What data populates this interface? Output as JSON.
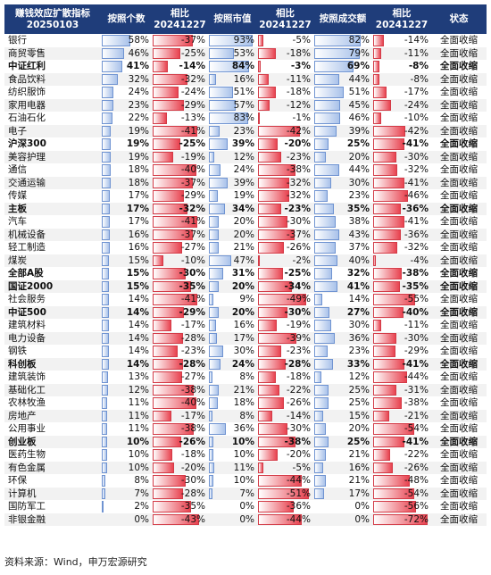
{
  "headers": {
    "col0": [
      "赚钱效应扩散指标",
      "20250103"
    ],
    "col1": "按照个数",
    "col2": [
      "相比",
      "20241227"
    ],
    "col3": "按照市值",
    "col4": [
      "相比",
      "20241227"
    ],
    "col5": "按照成交额",
    "col6": [
      "相比",
      "20241227"
    ],
    "col7": "状态"
  },
  "source": "资料来源：Wind，申万宏源研究",
  "colors": {
    "header_bg": "#1f3d7a",
    "positive_bar": "#a9c2ea",
    "negative_bar": "#e84350"
  },
  "chart_data": {
    "type": "table",
    "columns": [
      "赚钱效应扩散指标 20250103",
      "按照个数",
      "相比 20241227",
      "按照市值",
      "相比 20241227",
      "按照成交额",
      "相比 20241227",
      "状态"
    ],
    "rows": [
      {
        "name": "银行",
        "count": "58%",
        "count_chg": "-37%",
        "mcap": "93%",
        "mcap_chg": "-5%",
        "turnover": "82%",
        "turnover_chg": "-14%",
        "status": "全面收缩",
        "bold": false
      },
      {
        "name": "商贸零售",
        "count": "46%",
        "count_chg": "-25%",
        "mcap": "53%",
        "mcap_chg": "-18%",
        "turnover": "79%",
        "turnover_chg": "-11%",
        "status": "全面收缩",
        "bold": false
      },
      {
        "name": "中证红利",
        "count": "41%",
        "count_chg": "-14%",
        "mcap": "84%",
        "mcap_chg": "-3%",
        "turnover": "69%",
        "turnover_chg": "-8%",
        "status": "全面收缩",
        "bold": true
      },
      {
        "name": "食品饮料",
        "count": "32%",
        "count_chg": "-32%",
        "mcap": "16%",
        "mcap_chg": "-11%",
        "turnover": "44%",
        "turnover_chg": "-8%",
        "status": "全面收缩",
        "bold": false
      },
      {
        "name": "纺织服饰",
        "count": "24%",
        "count_chg": "-24%",
        "mcap": "51%",
        "mcap_chg": "-18%",
        "turnover": "51%",
        "turnover_chg": "-17%",
        "status": "全面收缩",
        "bold": false
      },
      {
        "name": "家用电器",
        "count": "23%",
        "count_chg": "-29%",
        "mcap": "57%",
        "mcap_chg": "-12%",
        "turnover": "45%",
        "turnover_chg": "-24%",
        "status": "全面收缩",
        "bold": false
      },
      {
        "name": "石油石化",
        "count": "22%",
        "count_chg": "-13%",
        "mcap": "83%",
        "mcap_chg": "-1%",
        "turnover": "46%",
        "turnover_chg": "-10%",
        "status": "全面收缩",
        "bold": false
      },
      {
        "name": "电子",
        "count": "19%",
        "count_chg": "-41%",
        "mcap": "23%",
        "mcap_chg": "-42%",
        "turnover": "39%",
        "turnover_chg": "-42%",
        "status": "全面收缩",
        "bold": false
      },
      {
        "name": "沪深300",
        "count": "19%",
        "count_chg": "-25%",
        "mcap": "39%",
        "mcap_chg": "-20%",
        "turnover": "25%",
        "turnover_chg": "-41%",
        "status": "全面收缩",
        "bold": true
      },
      {
        "name": "美容护理",
        "count": "19%",
        "count_chg": "-19%",
        "mcap": "12%",
        "mcap_chg": "-23%",
        "turnover": "20%",
        "turnover_chg": "-30%",
        "status": "全面收缩",
        "bold": false
      },
      {
        "name": "通信",
        "count": "18%",
        "count_chg": "-40%",
        "mcap": "24%",
        "mcap_chg": "-38%",
        "turnover": "44%",
        "turnover_chg": "-32%",
        "status": "全面收缩",
        "bold": false
      },
      {
        "name": "交通运输",
        "count": "18%",
        "count_chg": "-37%",
        "mcap": "39%",
        "mcap_chg": "-32%",
        "turnover": "30%",
        "turnover_chg": "-41%",
        "status": "全面收缩",
        "bold": false
      },
      {
        "name": "传媒",
        "count": "17%",
        "count_chg": "-29%",
        "mcap": "19%",
        "mcap_chg": "-32%",
        "turnover": "23%",
        "turnover_chg": "-46%",
        "status": "全面收缩",
        "bold": false
      },
      {
        "name": "主板",
        "count": "17%",
        "count_chg": "-32%",
        "mcap": "34%",
        "mcap_chg": "-23%",
        "turnover": "35%",
        "turnover_chg": "-36%",
        "status": "全面收缩",
        "bold": true
      },
      {
        "name": "汽车",
        "count": "17%",
        "count_chg": "-41%",
        "mcap": "20%",
        "mcap_chg": "-30%",
        "turnover": "38%",
        "turnover_chg": "-41%",
        "status": "全面收缩",
        "bold": false
      },
      {
        "name": "机械设备",
        "count": "16%",
        "count_chg": "-37%",
        "mcap": "20%",
        "mcap_chg": "-37%",
        "turnover": "43%",
        "turnover_chg": "-36%",
        "status": "全面收缩",
        "bold": false
      },
      {
        "name": "轻工制造",
        "count": "16%",
        "count_chg": "-27%",
        "mcap": "21%",
        "mcap_chg": "-26%",
        "turnover": "37%",
        "turnover_chg": "-32%",
        "status": "全面收缩",
        "bold": false
      },
      {
        "name": "煤炭",
        "count": "15%",
        "count_chg": "-10%",
        "mcap": "47%",
        "mcap_chg": "-2%",
        "turnover": "40%",
        "turnover_chg": "-4%",
        "status": "全面收缩",
        "bold": false
      },
      {
        "name": "全部A股",
        "count": "15%",
        "count_chg": "-30%",
        "mcap": "31%",
        "mcap_chg": "-25%",
        "turnover": "32%",
        "turnover_chg": "-38%",
        "status": "全面收缩",
        "bold": true
      },
      {
        "name": "国证2000",
        "count": "15%",
        "count_chg": "-35%",
        "mcap": "20%",
        "mcap_chg": "-34%",
        "turnover": "41%",
        "turnover_chg": "-35%",
        "status": "全面收缩",
        "bold": true
      },
      {
        "name": "社会服务",
        "count": "14%",
        "count_chg": "-41%",
        "mcap": "9%",
        "mcap_chg": "-49%",
        "turnover": "14%",
        "turnover_chg": "-55%",
        "status": "全面收缩",
        "bold": false
      },
      {
        "name": "中证500",
        "count": "14%",
        "count_chg": "-29%",
        "mcap": "20%",
        "mcap_chg": "-30%",
        "turnover": "27%",
        "turnover_chg": "-40%",
        "status": "全面收缩",
        "bold": true
      },
      {
        "name": "建筑材料",
        "count": "14%",
        "count_chg": "-17%",
        "mcap": "16%",
        "mcap_chg": "-19%",
        "turnover": "30%",
        "turnover_chg": "-11%",
        "status": "全面收缩",
        "bold": false
      },
      {
        "name": "电力设备",
        "count": "14%",
        "count_chg": "-28%",
        "mcap": "17%",
        "mcap_chg": "-39%",
        "turnover": "36%",
        "turnover_chg": "-30%",
        "status": "全面收缩",
        "bold": false
      },
      {
        "name": "钢铁",
        "count": "14%",
        "count_chg": "-23%",
        "mcap": "30%",
        "mcap_chg": "-23%",
        "turnover": "23%",
        "turnover_chg": "-29%",
        "status": "全面收缩",
        "bold": false
      },
      {
        "name": "科创板",
        "count": "14%",
        "count_chg": "-28%",
        "mcap": "24%",
        "mcap_chg": "-28%",
        "turnover": "33%",
        "turnover_chg": "-41%",
        "status": "全面收缩",
        "bold": true
      },
      {
        "name": "建筑装饰",
        "count": "13%",
        "count_chg": "-27%",
        "mcap": "8%",
        "mcap_chg": "-18%",
        "turnover": "12%",
        "turnover_chg": "-44%",
        "status": "全面收缩",
        "bold": false
      },
      {
        "name": "基础化工",
        "count": "12%",
        "count_chg": "-38%",
        "mcap": "21%",
        "mcap_chg": "-22%",
        "turnover": "25%",
        "turnover_chg": "-31%",
        "status": "全面收缩",
        "bold": false
      },
      {
        "name": "农林牧渔",
        "count": "11%",
        "count_chg": "-40%",
        "mcap": "18%",
        "mcap_chg": "-26%",
        "turnover": "25%",
        "turnover_chg": "-38%",
        "status": "全面收缩",
        "bold": false
      },
      {
        "name": "房地产",
        "count": "11%",
        "count_chg": "-17%",
        "mcap": "8%",
        "mcap_chg": "-14%",
        "turnover": "15%",
        "turnover_chg": "-21%",
        "status": "全面收缩",
        "bold": false
      },
      {
        "name": "公用事业",
        "count": "11%",
        "count_chg": "-38%",
        "mcap": "36%",
        "mcap_chg": "-30%",
        "turnover": "20%",
        "turnover_chg": "-54%",
        "status": "全面收缩",
        "bold": false
      },
      {
        "name": "创业板",
        "count": "10%",
        "count_chg": "-26%",
        "mcap": "10%",
        "mcap_chg": "-38%",
        "turnover": "25%",
        "turnover_chg": "-41%",
        "status": "全面收缩",
        "bold": true
      },
      {
        "name": "医药生物",
        "count": "10%",
        "count_chg": "-18%",
        "mcap": "10%",
        "mcap_chg": "-20%",
        "turnover": "21%",
        "turnover_chg": "-22%",
        "status": "全面收缩",
        "bold": false
      },
      {
        "name": "有色金属",
        "count": "10%",
        "count_chg": "-20%",
        "mcap": "11%",
        "mcap_chg": "-5%",
        "turnover": "16%",
        "turnover_chg": "-26%",
        "status": "全面收缩",
        "bold": false
      },
      {
        "name": "环保",
        "count": "8%",
        "count_chg": "-30%",
        "mcap": "10%",
        "mcap_chg": "-44%",
        "turnover": "21%",
        "turnover_chg": "-48%",
        "status": "全面收缩",
        "bold": false
      },
      {
        "name": "计算机",
        "count": "7%",
        "count_chg": "-28%",
        "mcap": "7%",
        "mcap_chg": "-51%",
        "turnover": "17%",
        "turnover_chg": "-54%",
        "status": "全面收缩",
        "bold": false
      },
      {
        "name": "国防军工",
        "count": "2%",
        "count_chg": "-35%",
        "mcap": "0%",
        "mcap_chg": "-36%",
        "turnover": "0%",
        "turnover_chg": "-56%",
        "status": "全面收缩",
        "bold": false
      },
      {
        "name": "非银金融",
        "count": "0%",
        "count_chg": "-43%",
        "mcap": "0%",
        "mcap_chg": "-44%",
        "turnover": "0%",
        "turnover_chg": "-72%",
        "status": "全面收缩",
        "bold": false
      }
    ]
  }
}
